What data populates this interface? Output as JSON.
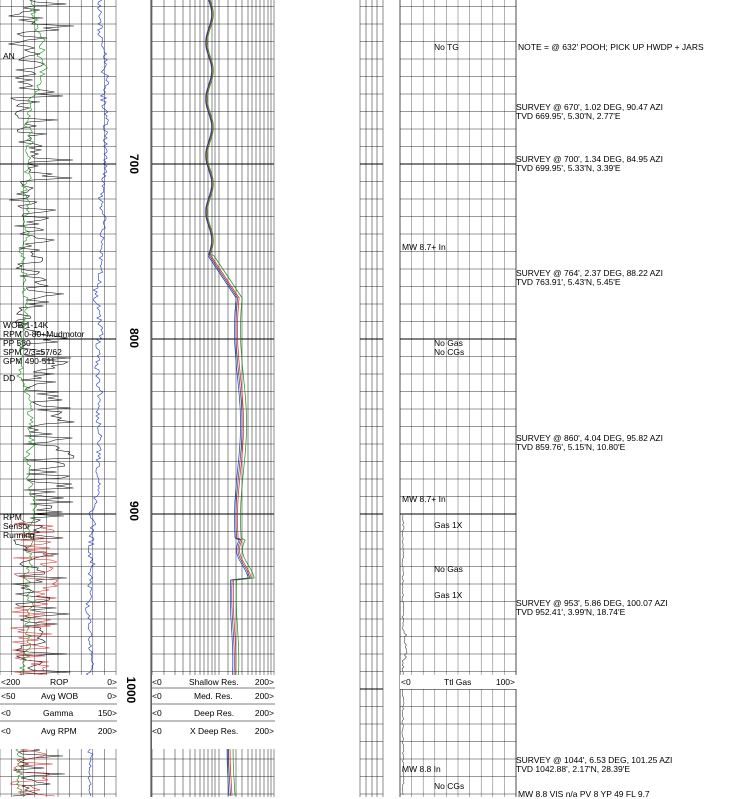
{
  "depth_labels": [
    "700",
    "800",
    "900",
    "1000"
  ],
  "track1_notes": {
    "an": "AN",
    "params": [
      "WOB 1-14K",
      "RPM 0-80+Mudmotor",
      "PP 580",
      "SPM 2/3=57/62",
      "GPM 490-511"
    ],
    "dd": "DD",
    "rpm_sensor": [
      "RPM",
      "Sensor",
      "Running"
    ]
  },
  "track1_scales": [
    {
      "min": "<200",
      "name": "ROP",
      "max": "0>",
      "color": "#000000"
    },
    {
      "min": "<50",
      "name": "Avg WOB",
      "max": "0>",
      "color": "#000000"
    },
    {
      "min": "<0",
      "name": "Gamma",
      "max": "150>",
      "color": "#000000"
    },
    {
      "min": "<0",
      "name": "Avg RPM",
      "max": "200>",
      "color": "#000000"
    }
  ],
  "track2_scales": [
    {
      "min": "<0",
      "name": "Shallow Res.",
      "max": "200>"
    },
    {
      "min": "<0",
      "name": "Med. Res.",
      "max": "200>"
    },
    {
      "min": "<0",
      "name": "Deep Res.",
      "max": "200>"
    },
    {
      "min": "<0",
      "name": "X Deep Res.",
      "max": "200>"
    }
  ],
  "gas_scale": {
    "min": "<0",
    "name": "Ttl Gas",
    "max": "100>"
  },
  "gas_notes": [
    "No TG",
    "No Gas",
    "No CGs",
    "Gas 1X",
    "No Gas",
    "Gas 1X",
    "No CGs"
  ],
  "mw_notes": [
    "MW 8.7+ In",
    "MW 8.7+ In",
    "MW 8.8 In"
  ],
  "remarks": [
    "NOTE = @ 632' POOH; PICK UP HWDP + JARS",
    "SURVEY @ 670', 1.02 DEG, 90.47 AZI",
    "TVD 669.95', 5.30'N, 2.77'E",
    "SURVEY @ 700', 1.34 DEG, 84.95 AZI",
    "TVD 699.95', 5.33'N, 3.39'E",
    "SURVEY @ 764', 2.37 DEG, 88.22 AZI",
    "TVD 763.91', 5.43'N, 5.45'E",
    "SURVEY @ 860', 4.04 DEG, 95.82 AZI",
    "TVD 859.76', 5.15'N, 10.80'E",
    "SURVEY @ 953', 5.86 DEG, 100.07 AZI",
    "TVD 952.41', 3.99'N, 18.74'E",
    "SURVEY @ 1044', 6.53 DEG, 101.25 AZI",
    "TVD 1042.88', 2.17'N, 28.39'E",
    "MW 8.8 VIS n/a PV 8 YP 49 FL 9.7"
  ],
  "colors": {
    "rop": "#000000",
    "gamma": "#1a8c1a",
    "wob": "#1a33cc",
    "rpm": "#d42020",
    "shallow": "#1a33cc",
    "medium": "#d42020",
    "deep": "#1a8c1a",
    "xdeep": "#444444",
    "grid": "#000000"
  }
}
